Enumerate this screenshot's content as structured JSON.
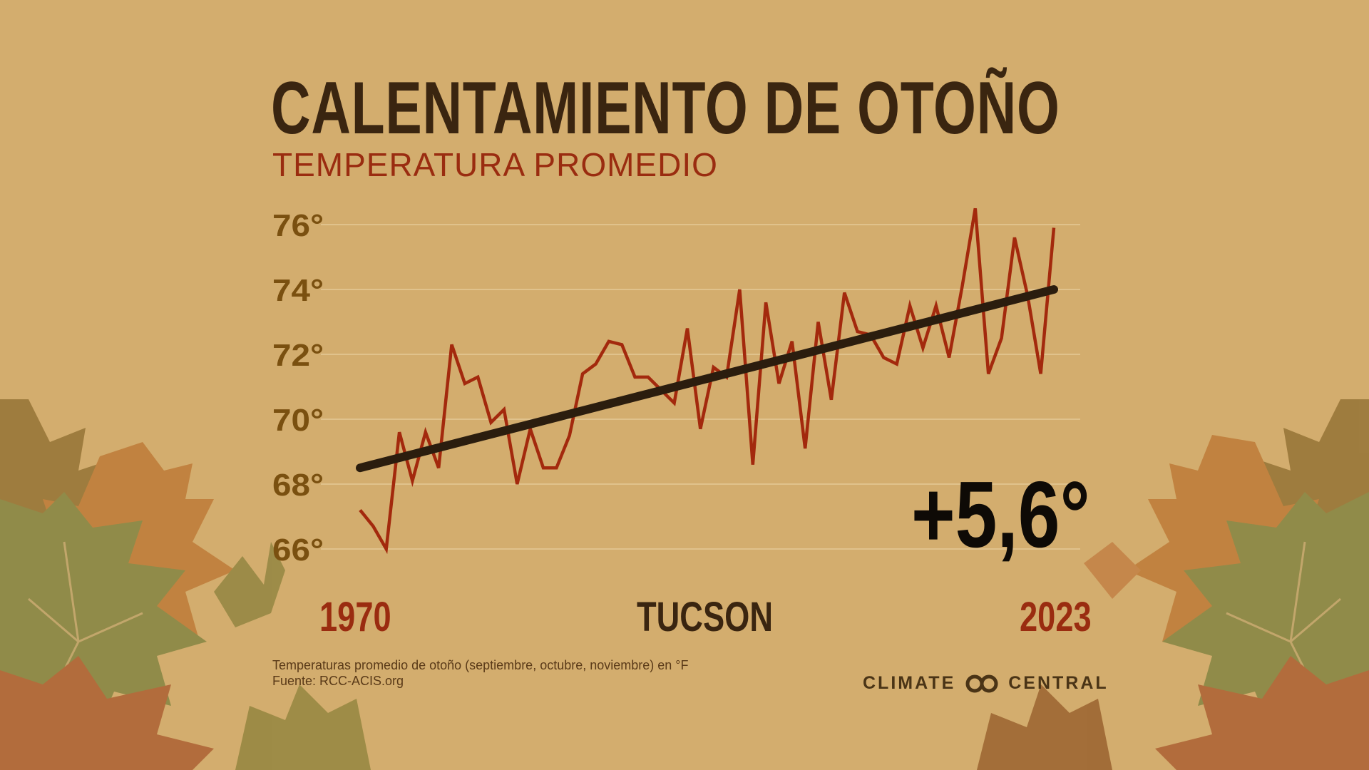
{
  "title": "CALENTAMIENTO DE OTOÑO",
  "subtitle": "TEMPERATURA PROMEDIO",
  "location": "TUCSON",
  "change_label": "+5,6°",
  "footnote": {
    "line1": "Temperaturas promedio de otoño (septiembre, octubre, noviembre) en °F",
    "line2": "Fuente: RCC-ACIS.org"
  },
  "brand": {
    "left": "CLIMATE",
    "right": "CENTRAL",
    "logo_icon": "linked-circles-icon"
  },
  "colors": {
    "background": "#d3ad6e",
    "series": "#a3290d",
    "trend": "#2b1d0e",
    "ytick": "#7a5010",
    "year_labels": "#9a2c10",
    "title": "#3a2510"
  },
  "chart_data": {
    "type": "line",
    "x_start_label": "1970",
    "x_end_label": "2023",
    "ytick_labels": [
      "66°",
      "68°",
      "70°",
      "72°",
      "74°",
      "76°"
    ],
    "ytick_values": [
      66,
      68,
      70,
      72,
      74,
      76
    ],
    "ylim": [
      66,
      76
    ],
    "xlim": [
      1970,
      2023
    ],
    "grid": true,
    "x": [
      1970,
      1971,
      1972,
      1973,
      1974,
      1975,
      1976,
      1977,
      1978,
      1979,
      1980,
      1981,
      1982,
      1983,
      1984,
      1985,
      1986,
      1987,
      1988,
      1989,
      1990,
      1991,
      1992,
      1993,
      1994,
      1995,
      1996,
      1997,
      1998,
      1999,
      2000,
      2001,
      2002,
      2003,
      2004,
      2005,
      2006,
      2007,
      2008,
      2009,
      2010,
      2011,
      2012,
      2013,
      2014,
      2015,
      2016,
      2017,
      2018,
      2019,
      2020,
      2021,
      2022,
      2023
    ],
    "series": [
      {
        "values": [
          67.2,
          66.7,
          66.0,
          69.6,
          68.1,
          69.6,
          68.5,
          72.3,
          71.1,
          71.3,
          69.9,
          70.3,
          68.0,
          69.7,
          68.5,
          68.5,
          69.5,
          71.4,
          71.7,
          72.4,
          72.3,
          71.3,
          71.3,
          70.9,
          70.5,
          72.8,
          69.7,
          71.6,
          71.3,
          74.0,
          68.6,
          73.6,
          71.1,
          72.4,
          69.1,
          73.0,
          70.6,
          73.9,
          72.7,
          72.6,
          71.9,
          71.7,
          73.5,
          72.2,
          73.5,
          71.9,
          74.1,
          76.5,
          71.4,
          72.5,
          75.6,
          73.8,
          71.4,
          75.9
        ]
      }
    ],
    "trend": {
      "start": [
        1970,
        68.5
      ],
      "end": [
        2023,
        74.0
      ]
    }
  }
}
